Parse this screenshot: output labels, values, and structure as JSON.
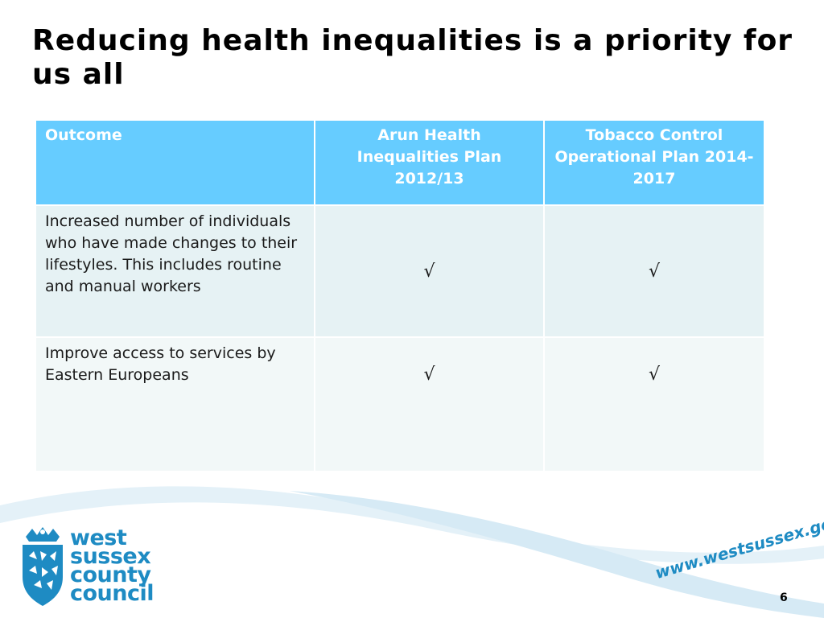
{
  "slide": {
    "title": "Reducing health inequalities is a priority for us all",
    "page_number": "6"
  },
  "table": {
    "headers": [
      "Outcome",
      "Arun Health Inequalities Plan 2012/13",
      "Tobacco Control Operational Plan 2014-2017"
    ],
    "rows": [
      {
        "outcome": "Increased number of individuals who have made changes to their lifestyles. This includes routine and manual workers",
        "arun": "√",
        "tobacco": "√"
      },
      {
        "outcome": "Improve access to services by Eastern Europeans",
        "arun": "√",
        "tobacco": "√"
      }
    ]
  },
  "branding": {
    "logo_lines": [
      "west",
      "sussex",
      "county",
      "council"
    ],
    "url": "www.westsussex.gov.uk",
    "brand_color": "#1e8bc3",
    "header_color": "#66ccff"
  }
}
